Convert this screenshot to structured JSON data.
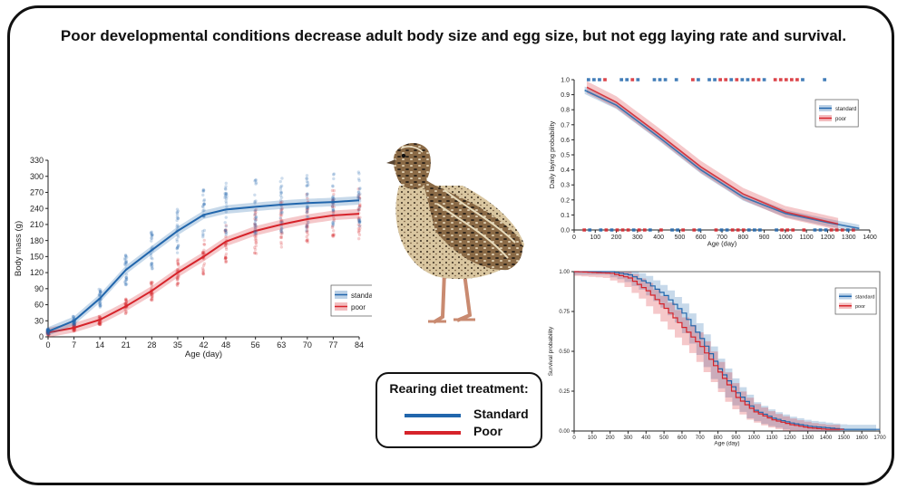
{
  "title": "Poor developmental conditions decrease adult body size and egg size, but not egg laying rate and survival.",
  "colors": {
    "standard": "#2166ac",
    "poor": "#d6232a",
    "text": "#111111"
  },
  "diet_legend": {
    "title": "Rearing diet treatment:",
    "items": [
      {
        "label": "Standard",
        "color": "#2166ac"
      },
      {
        "label": "Poor",
        "color": "#d6232a"
      }
    ]
  },
  "illustration": {
    "icon": "quail-bird-icon"
  },
  "chart_data": [
    {
      "id": "body_mass",
      "type": "line",
      "title": "",
      "xlabel": "Age (day)",
      "ylabel": "Body mass (g)",
      "xticks": [
        0,
        7,
        14,
        21,
        28,
        35,
        42,
        48,
        56,
        63,
        70,
        77,
        84
      ],
      "yticks": [
        0,
        30,
        60,
        90,
        120,
        150,
        180,
        210,
        240,
        270,
        300,
        330
      ],
      "xlim": [
        0,
        84
      ],
      "ylim": [
        0,
        330
      ],
      "legend_position": "right",
      "series": [
        {
          "name": "standard",
          "color": "#2166ac",
          "x": [
            0,
            7,
            14,
            21,
            28,
            35,
            42,
            48,
            56,
            63,
            70,
            77,
            84
          ],
          "y": [
            10,
            30,
            72,
            125,
            162,
            198,
            228,
            238,
            243,
            247,
            250,
            252,
            255
          ]
        },
        {
          "name": "poor",
          "color": "#d6232a",
          "x": [
            0,
            7,
            14,
            21,
            28,
            35,
            42,
            48,
            56,
            63,
            70,
            77,
            84
          ],
          "y": [
            8,
            17,
            32,
            57,
            86,
            120,
            150,
            178,
            198,
            210,
            220,
            227,
            230
          ]
        }
      ]
    },
    {
      "id": "laying",
      "type": "line",
      "title": "",
      "xlabel": "Age (day)",
      "ylabel": "Daily laying probability",
      "xticks": [
        0,
        100,
        200,
        300,
        400,
        500,
        600,
        700,
        800,
        900,
        1000,
        1100,
        1200,
        1300,
        1400
      ],
      "yticks": [
        0.0,
        0.1,
        0.2,
        0.3,
        0.4,
        0.5,
        0.6,
        0.7,
        0.8,
        0.9,
        1.0
      ],
      "ytick_labels": [
        "0.0",
        "0.1",
        "0.2",
        "0.3",
        "0.4",
        "0.5",
        "0.6",
        "0.7",
        "0.8",
        "0.9",
        "1.0"
      ],
      "xlim": [
        0,
        1400
      ],
      "ylim": [
        0,
        1
      ],
      "legend_position": "top-right",
      "series": [
        {
          "name": "standard",
          "color": "#2166ac",
          "x": [
            50,
            200,
            400,
            600,
            800,
            1000,
            1200,
            1350
          ],
          "y": [
            0.93,
            0.83,
            0.62,
            0.4,
            0.22,
            0.11,
            0.05,
            0.01
          ]
        },
        {
          "name": "poor",
          "color": "#d6232a",
          "x": [
            60,
            200,
            400,
            600,
            800,
            1000,
            1250
          ],
          "y": [
            0.95,
            0.85,
            0.64,
            0.42,
            0.24,
            0.12,
            0.04
          ]
        }
      ]
    },
    {
      "id": "survival",
      "type": "line",
      "title": "",
      "xlabel": "Age (day)",
      "ylabel": "Survival probability",
      "xticks": [
        0,
        100,
        200,
        300,
        400,
        500,
        600,
        700,
        800,
        900,
        1000,
        1100,
        1200,
        1300,
        1400,
        1500,
        1600,
        1700
      ],
      "yticks": [
        0.0,
        0.25,
        0.5,
        0.75,
        1.0
      ],
      "ytick_labels": [
        "0.00",
        "0.25",
        "0.50",
        "0.75",
        "1.00"
      ],
      "xlim": [
        0,
        1700
      ],
      "ylim": [
        0,
        1
      ],
      "legend_position": "top-right",
      "series": [
        {
          "name": "standard",
          "color": "#2166ac",
          "x": [
            0,
            200,
            300,
            400,
            500,
            600,
            700,
            800,
            900,
            1000,
            1100,
            1200,
            1300,
            1400,
            1500,
            1600,
            1700
          ],
          "y": [
            1.0,
            1.0,
            0.98,
            0.93,
            0.85,
            0.74,
            0.58,
            0.39,
            0.24,
            0.13,
            0.08,
            0.05,
            0.03,
            0.02,
            0.01,
            0.01,
            0.01
          ]
        },
        {
          "name": "poor",
          "color": "#d6232a",
          "x": [
            0,
            200,
            300,
            400,
            500,
            600,
            700,
            800,
            900,
            1000,
            1100,
            1200,
            1300,
            1400,
            1500
          ],
          "y": [
            1.0,
            0.99,
            0.96,
            0.88,
            0.77,
            0.65,
            0.53,
            0.37,
            0.21,
            0.12,
            0.07,
            0.04,
            0.02,
            0.01,
            0.01
          ]
        }
      ]
    }
  ]
}
